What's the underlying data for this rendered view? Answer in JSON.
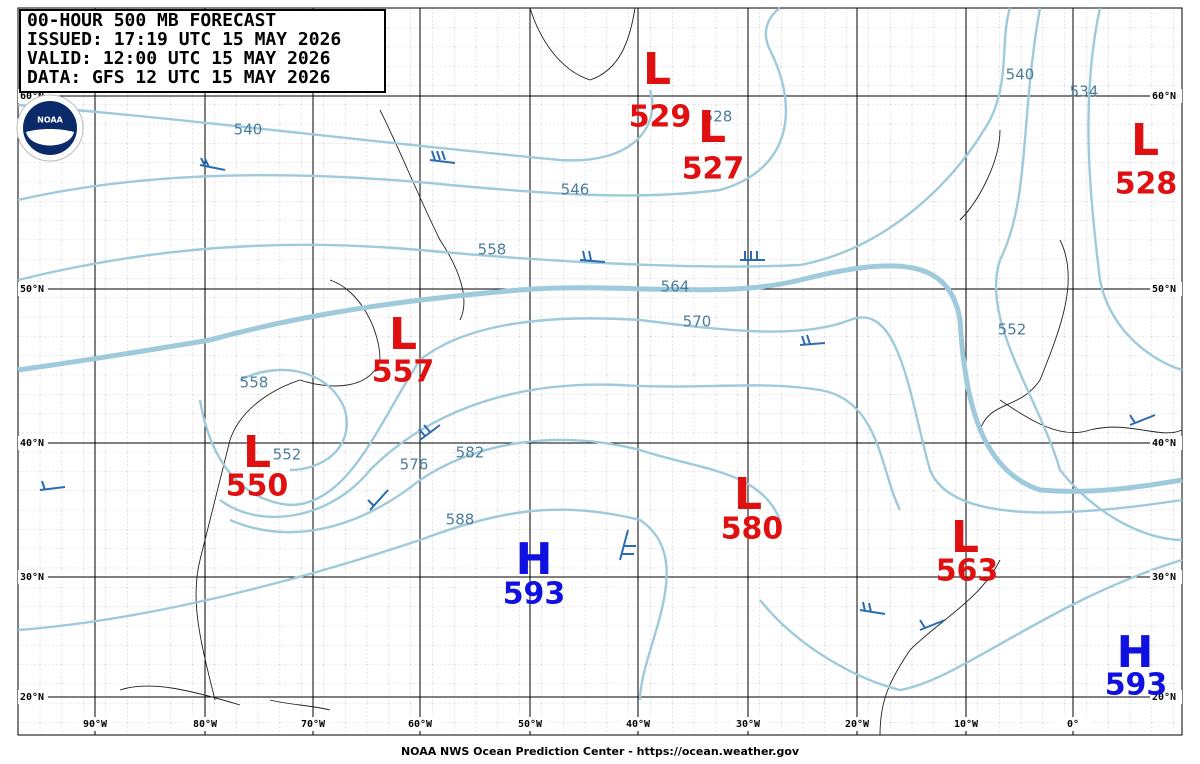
{
  "header": {
    "lines": [
      "00-HOUR 500 MB FORECAST",
      "ISSUED: 17:19 UTC 15 MAY 2026",
      "VALID:  12:00 UTC 15 MAY 2026",
      "DATA:  GFS 12 UTC 15 MAY 2026"
    ]
  },
  "logo": "NOAA",
  "lat_labels": [
    "60°N",
    "50°N",
    "40°N",
    "30°N",
    "20°N"
  ],
  "lon_labels": [
    "90°W",
    "80°W",
    "70°W",
    "60°W",
    "50°W",
    "40°W",
    "30°W",
    "20°W",
    "10°W",
    "0°"
  ],
  "centers": [
    {
      "symbol": "L",
      "value": 529
    },
    {
      "symbol": "L",
      "value": 527
    },
    {
      "symbol": "L",
      "value": 528
    },
    {
      "symbol": "L",
      "value": 557
    },
    {
      "symbol": "L",
      "value": 550
    },
    {
      "symbol": "L",
      "value": 580
    },
    {
      "symbol": "L",
      "value": 563
    },
    {
      "symbol": "H",
      "value": 593
    },
    {
      "symbol": "H",
      "value": 593
    }
  ],
  "contour_labels": [
    "540",
    "546",
    "558",
    "564",
    "570",
    "576",
    "582",
    "588",
    "552",
    "558",
    "540",
    "534",
    "552",
    "528"
  ],
  "footer": "NOAA NWS Ocean Prediction Center - https://ocean.weather.gov"
}
